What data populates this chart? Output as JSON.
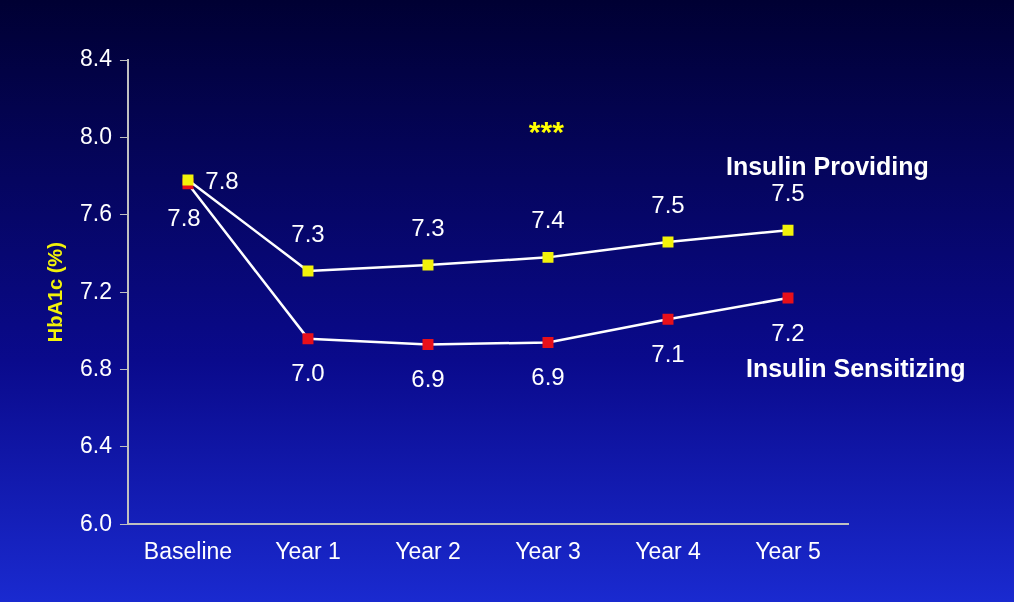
{
  "chart_data": {
    "type": "line",
    "ylabel": "HbA1c (%)",
    "categories": [
      "Baseline",
      "Year 1",
      "Year 2",
      "Year 3",
      "Year 4",
      "Year 5"
    ],
    "series": [
      {
        "name": "Insulin Providing",
        "color": "#f2f20a",
        "values": [
          7.78,
          7.31,
          7.34,
          7.38,
          7.46,
          7.52
        ],
        "value_labels": [
          "7.8",
          "7.3",
          "7.3",
          "7.4",
          "7.5",
          "7.5"
        ]
      },
      {
        "name": "Insulin Sensitizing",
        "color": "#e8101a",
        "values": [
          7.76,
          6.96,
          6.93,
          6.94,
          7.06,
          7.17
        ],
        "value_labels": [
          "7.8",
          "7.0",
          "6.9",
          "6.9",
          "7.1",
          "7.2"
        ]
      }
    ],
    "ylim": [
      6.0,
      8.4
    ],
    "yticks": [
      {
        "value": 6.0,
        "label": "6.0"
      },
      {
        "value": 6.4,
        "label": "6.4"
      },
      {
        "value": 6.8,
        "label": "6.8"
      },
      {
        "value": 7.2,
        "label": "7.2"
      },
      {
        "value": 7.6,
        "label": "7.6"
      },
      {
        "value": 8.0,
        "label": "8.0"
      },
      {
        "value": 8.4,
        "label": "8.4"
      }
    ],
    "annotations": [
      "***"
    ],
    "marker": "square",
    "grid": false,
    "legend": false
  }
}
